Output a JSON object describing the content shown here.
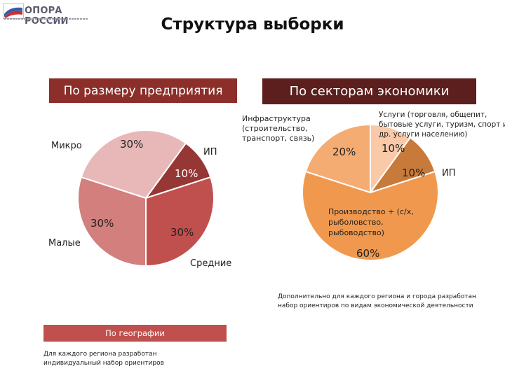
{
  "logo": {
    "text": "ОПОРА РОССИИ"
  },
  "title": "Структура выборки",
  "headers": {
    "by_size": "По размеру предприятия",
    "by_sector": "По секторам экономики",
    "by_geo": "По географии"
  },
  "notes": {
    "sector_note_line1": "Дополнительно для каждого региона и города разработан",
    "sector_note_line2": "набор ориентиров по видам экономической деятельности",
    "geo_note_line1": "Для каждого региона разработан",
    "geo_note_line2": "индивидуальный набор ориентиров"
  },
  "colors": {
    "header_dark_red": "#8c2f2a",
    "header_darker": "#5c1f1d",
    "header_light_red": "#c0504d"
  },
  "chart_data": [
    {
      "type": "pie",
      "title": "По размеру предприятия",
      "slices": [
        {
          "label": "ИП",
          "value": 10,
          "value_label": "10%",
          "color": "#953735"
        },
        {
          "label": "Средние",
          "value": 30,
          "value_label": "30%",
          "color": "#c0504d"
        },
        {
          "label": "Малые",
          "value": 30,
          "value_label": "30%",
          "color": "#d27f7d"
        },
        {
          "label": "Микро",
          "value": 30,
          "value_label": "30%",
          "color": "#e7b8b7"
        }
      ]
    },
    {
      "type": "pie",
      "title": "По секторам экономики",
      "slices": [
        {
          "label_lines": [
            "Услуги (торговля, общепит,",
            "бытовые услуги, туризм, спорт и",
            "др. услуги населению)"
          ],
          "value": 10,
          "value_label": "10%",
          "color": "#f9c9a8"
        },
        {
          "label_lines": [
            "ИП"
          ],
          "value": 10,
          "value_label": "10%",
          "color": "#c87a3a"
        },
        {
          "label_lines": [
            "Производство +  (с/х,",
            "рыболовство,",
            "рыбоводство)"
          ],
          "value": 60,
          "value_label": "60%",
          "color": "#f0994e"
        },
        {
          "label_lines": [
            "Инфраструктура",
            "(строительство,",
            "транспорт, связь)"
          ],
          "value": 20,
          "value_label": "20%",
          "color": "#f5ac73"
        }
      ]
    }
  ]
}
